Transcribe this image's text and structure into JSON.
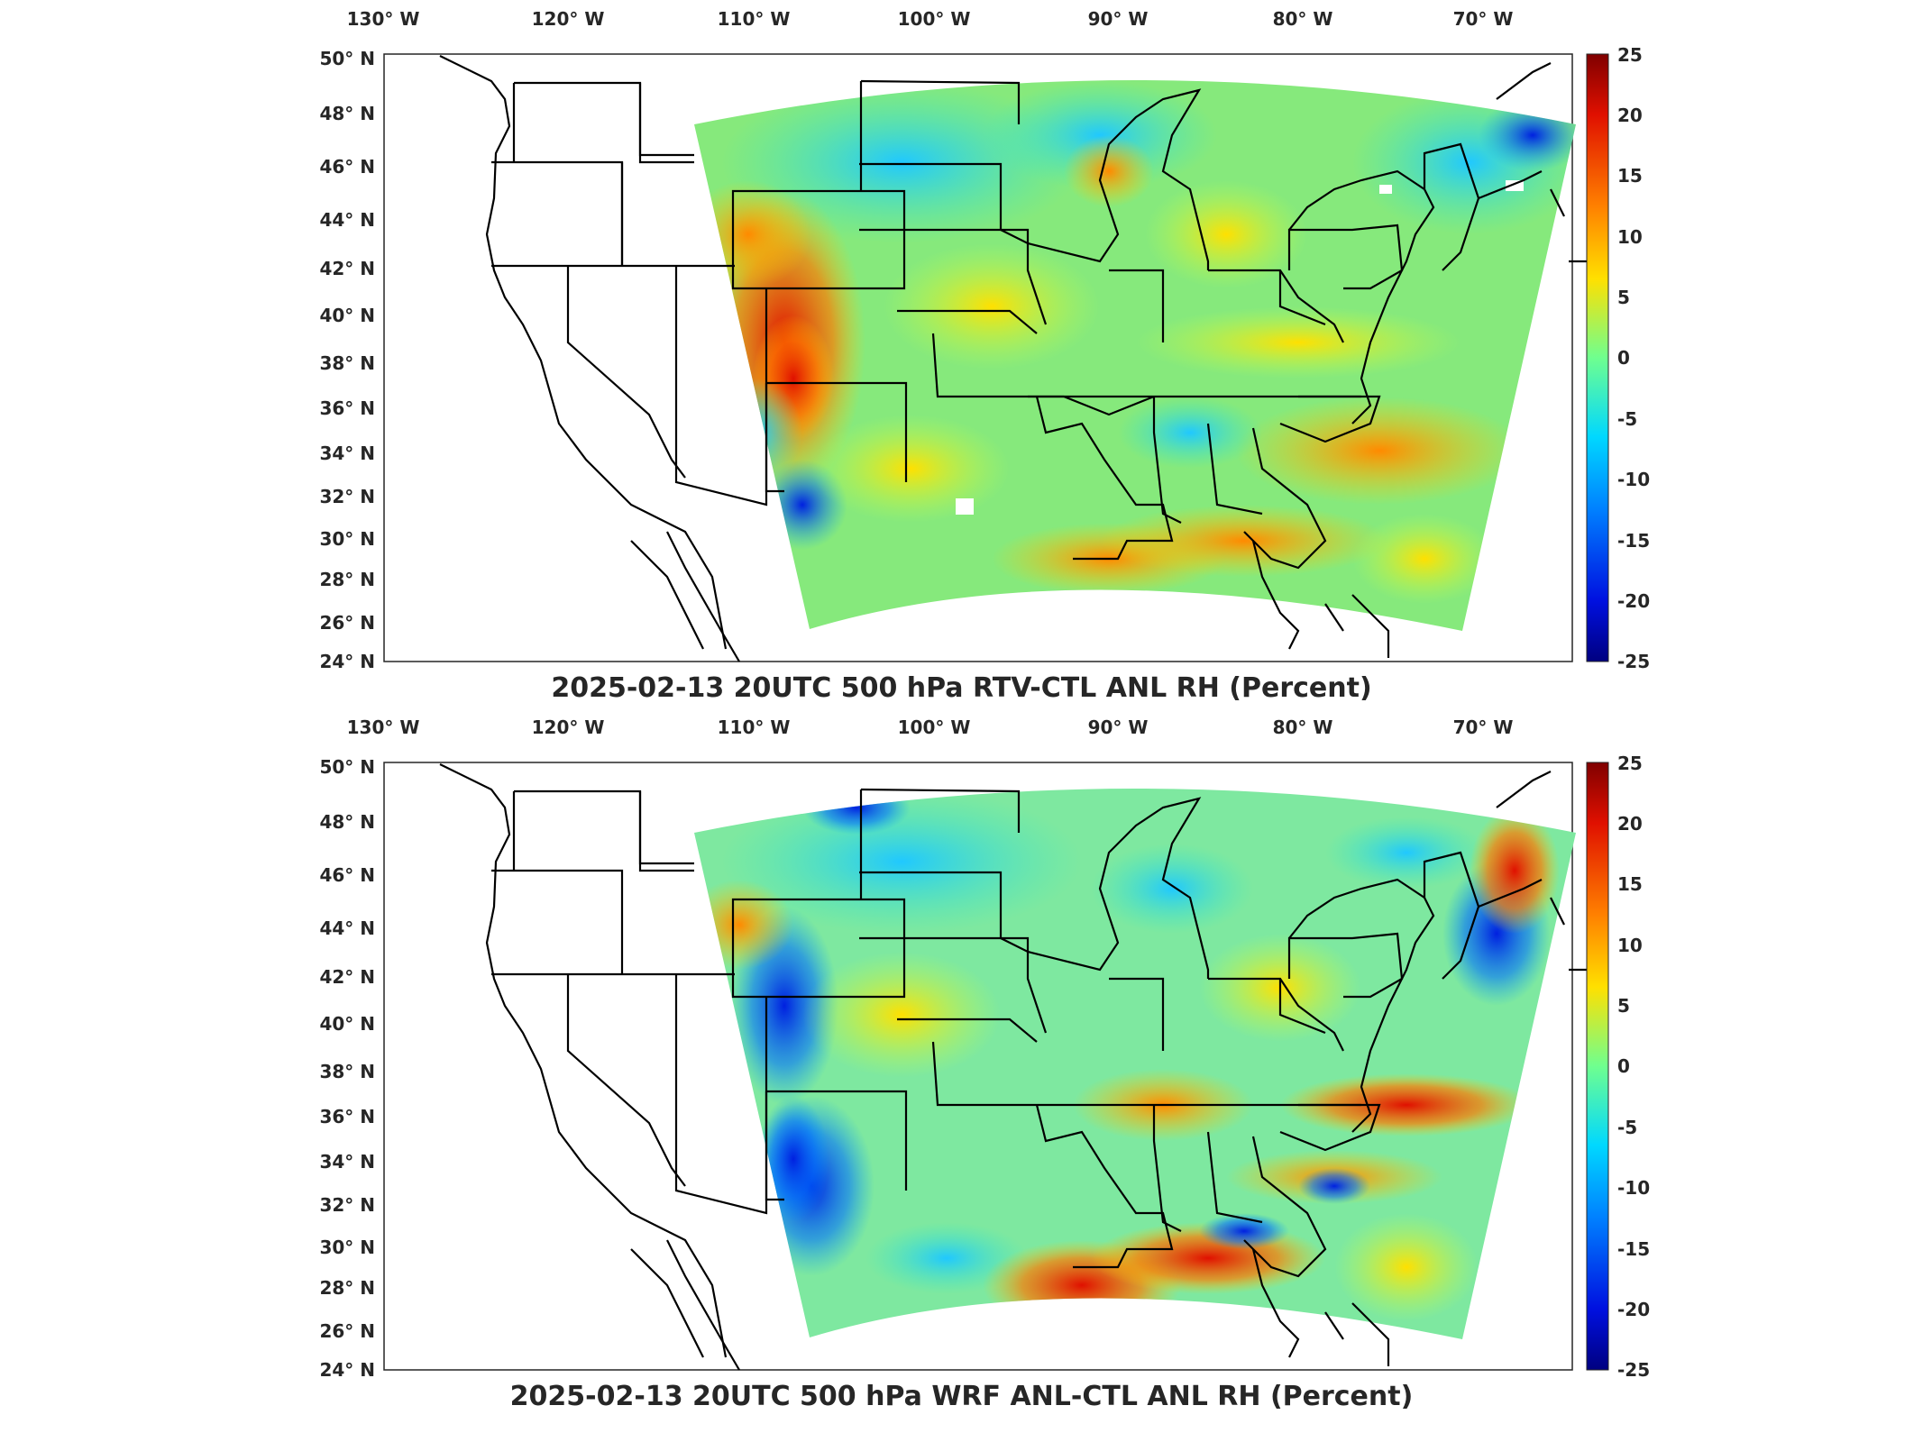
{
  "colorbar": {
    "ticks": [
      "25",
      "20",
      "15",
      "10",
      "5",
      "0",
      "-5",
      "-10",
      "-15",
      "-20",
      "-25"
    ],
    "colors": [
      "#800000",
      "#e01000",
      "#ff6a00",
      "#ffd000",
      "#c8ff38",
      "#4cffb2",
      "#00c8ff",
      "#0070ff",
      "#0010e0",
      "#000080"
    ]
  },
  "lon_labels": [
    "130° W",
    "120° W",
    "110° W",
    "100° W",
    "90° W",
    "80° W",
    "70° W"
  ],
  "lat_labels": [
    "50° N",
    "48° N",
    "46° N",
    "44° N",
    "42° N",
    "40° N",
    "38° N",
    "36° N",
    "34° N",
    "32° N",
    "30° N",
    "28° N",
    "26° N",
    "24° N"
  ],
  "panels": [
    {
      "title": "2025-02-13 20UTC 500 hPa RTV-CTL ANL RH (Percent)",
      "field_base": "#7ee87a",
      "anomalies": [
        {
          "desc": "strong moist anomaly over Utah/Colorado plateau",
          "value": 22
        },
        {
          "desc": "moist band along Gulf coast",
          "value": 12
        },
        {
          "desc": "dry anomaly over New Mexico/Texas border",
          "value": -18
        },
        {
          "desc": "dry patches over Great Plains",
          "value": -6
        }
      ]
    },
    {
      "title": "2025-02-13 20UTC 500 hPa WRF ANL-CTL ANL RH (Percent)",
      "field_base": "#7ee87a",
      "anomalies": [
        {
          "desc": "dry anomaly over Arizona/New Mexico",
          "value": -20
        },
        {
          "desc": "strong moist band along Gulf coast",
          "value": 20
        },
        {
          "desc": "moist band offshore Atlantic",
          "value": 18
        },
        {
          "desc": "dry patches over northern Rockies",
          "value": -12
        }
      ]
    }
  ]
}
